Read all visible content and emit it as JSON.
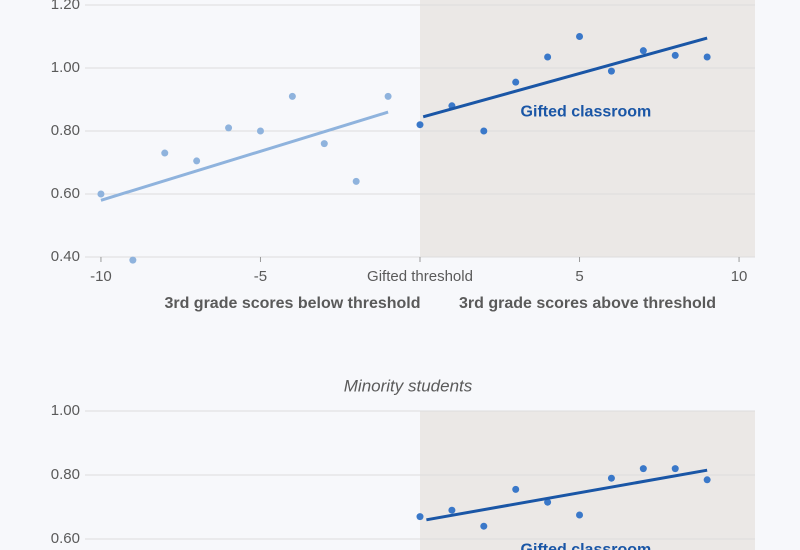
{
  "chart_data": [
    {
      "type": "scatter",
      "xlim": [
        -10.5,
        10.5
      ],
      "xticks": [
        -10,
        -5,
        {
          "value": 0,
          "label": "Gifted threshold"
        },
        5,
        10
      ],
      "ylim": [
        0.4,
        1.2
      ],
      "yticks": [
        {
          "value": 0.4,
          "label": "0.40"
        },
        {
          "value": 0.6,
          "label": "0.60"
        },
        {
          "value": 0.8,
          "label": "0.80"
        },
        {
          "value": 1.0,
          "label": "1.00"
        },
        {
          "value": 1.2,
          "label": "1.20"
        }
      ],
      "grid": true,
      "shade_from": 0,
      "x_group_labels": [
        "3rd grade scores below threshold",
        "3rd grade scores above threshold"
      ],
      "annotations": [
        {
          "text": "Gifted classroom",
          "x": 5.2,
          "y": 0.86
        }
      ],
      "series": [
        {
          "mode": "markers",
          "color": "#8fb3dd",
          "x": [
            -10,
            -9,
            -8,
            -7,
            -6,
            -5,
            -4,
            -3,
            -2,
            -1
          ],
          "values": [
            0.6,
            0.39,
            0.73,
            0.705,
            0.81,
            0.8,
            0.91,
            0.76,
            0.64,
            0.91
          ]
        },
        {
          "mode": "line",
          "color": "#8fb3dd",
          "x": [
            -10,
            -1
          ],
          "values": [
            0.58,
            0.86
          ]
        },
        {
          "mode": "markers",
          "color": "#3a78c9",
          "x": [
            0,
            1,
            2,
            3,
            4,
            5,
            6,
            7,
            8,
            9
          ],
          "values": [
            0.82,
            0.88,
            0.8,
            0.955,
            1.035,
            1.1,
            0.99,
            1.055,
            1.04,
            1.035
          ]
        },
        {
          "mode": "line",
          "color": "#1a56a6",
          "x": [
            0.1,
            9
          ],
          "values": [
            0.845,
            1.095
          ]
        }
      ]
    },
    {
      "type": "scatter",
      "title": "Minority students",
      "xlim": [
        -10.5,
        10.5
      ],
      "ylim": [
        0.6,
        1.0
      ],
      "yticks": [
        {
          "value": 0.6,
          "label": "0.60"
        },
        {
          "value": 0.8,
          "label": "0.80"
        },
        {
          "value": 1.0,
          "label": "1.00"
        }
      ],
      "grid": true,
      "shade_from": 0,
      "annotations": [
        {
          "text": "Gifted classroom",
          "x": 5.2,
          "y": 0.565
        }
      ],
      "series": [
        {
          "mode": "markers",
          "color": "#3a78c9",
          "x": [
            0,
            1,
            2,
            3,
            4,
            5,
            6,
            7,
            8,
            9
          ],
          "values": [
            0.67,
            0.69,
            0.64,
            0.755,
            0.715,
            0.675,
            0.79,
            0.82,
            0.82,
            0.785
          ]
        },
        {
          "mode": "line",
          "color": "#1a56a6",
          "x": [
            0.2,
            9
          ],
          "values": [
            0.66,
            0.815
          ]
        }
      ]
    }
  ]
}
